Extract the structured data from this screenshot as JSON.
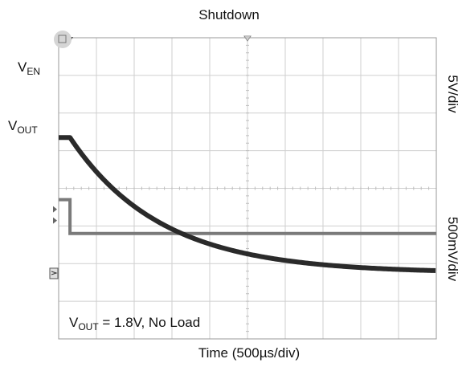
{
  "chart_data": {
    "type": "line",
    "title": "Shutdown",
    "xlabel": "Time (500µs/div)",
    "xlim": [
      0,
      5000
    ],
    "x_units": "µs",
    "grid": true,
    "grid_divisions": {
      "x": 10,
      "y": 8
    },
    "channels": [
      {
        "name": "VEN",
        "label_main": "V",
        "label_sub": "EN",
        "scale": "5V/div",
        "color": "#7a7a7a",
        "level_divs_before": 3.7,
        "level_divs_after": 2.8,
        "step_time_us": 150
      },
      {
        "name": "VOUT",
        "label_main": "V",
        "label_sub": "OUT",
        "scale": "500mV/div",
        "color": "#2a2a2a",
        "start_V": 1.8,
        "final_V": 0.0,
        "decay_start_us": 150,
        "tau_us": 1200,
        "ground_div_from_bottom": 1.75
      }
    ],
    "annotation": {
      "pre": "V",
      "sub": "OUT",
      "post": " = 1.8V, No Load"
    }
  }
}
